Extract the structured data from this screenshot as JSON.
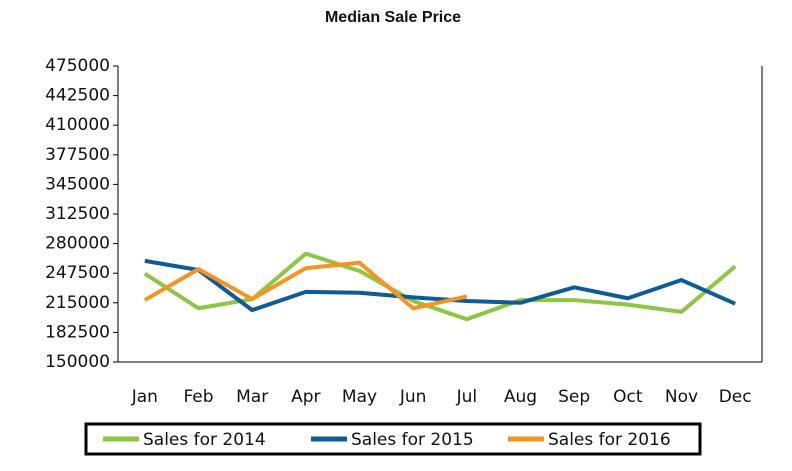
{
  "chart_data": {
    "type": "line",
    "title": "Median Sale Price",
    "categories": [
      "Jan",
      "Feb",
      "Mar",
      "Apr",
      "May",
      "Jun",
      "Jul",
      "Aug",
      "Sep",
      "Oct",
      "Nov",
      "Dec"
    ],
    "series": [
      {
        "name": "Sales for 2014",
        "color": "#8dc63f",
        "values": [
          247000,
          209000,
          219000,
          269000,
          250000,
          217000,
          197000,
          218000,
          218000,
          213000,
          205000,
          255000
        ]
      },
      {
        "name": "Sales for 2015",
        "color": "#0b5c99",
        "values": [
          261000,
          251000,
          207000,
          227000,
          226000,
          221000,
          217000,
          215000,
          232000,
          220000,
          240000,
          214000
        ]
      },
      {
        "name": "Sales for 2016",
        "color": "#f7931e",
        "values": [
          218000,
          252000,
          219000,
          253000,
          259000,
          209000,
          222000,
          null,
          null,
          null,
          null,
          null
        ]
      }
    ],
    "ylim": [
      150000,
      475000
    ],
    "yticks": [
      150000,
      182500,
      215000,
      247500,
      280000,
      312500,
      345000,
      377500,
      410000,
      442500,
      475000
    ],
    "legend": "bottom"
  }
}
